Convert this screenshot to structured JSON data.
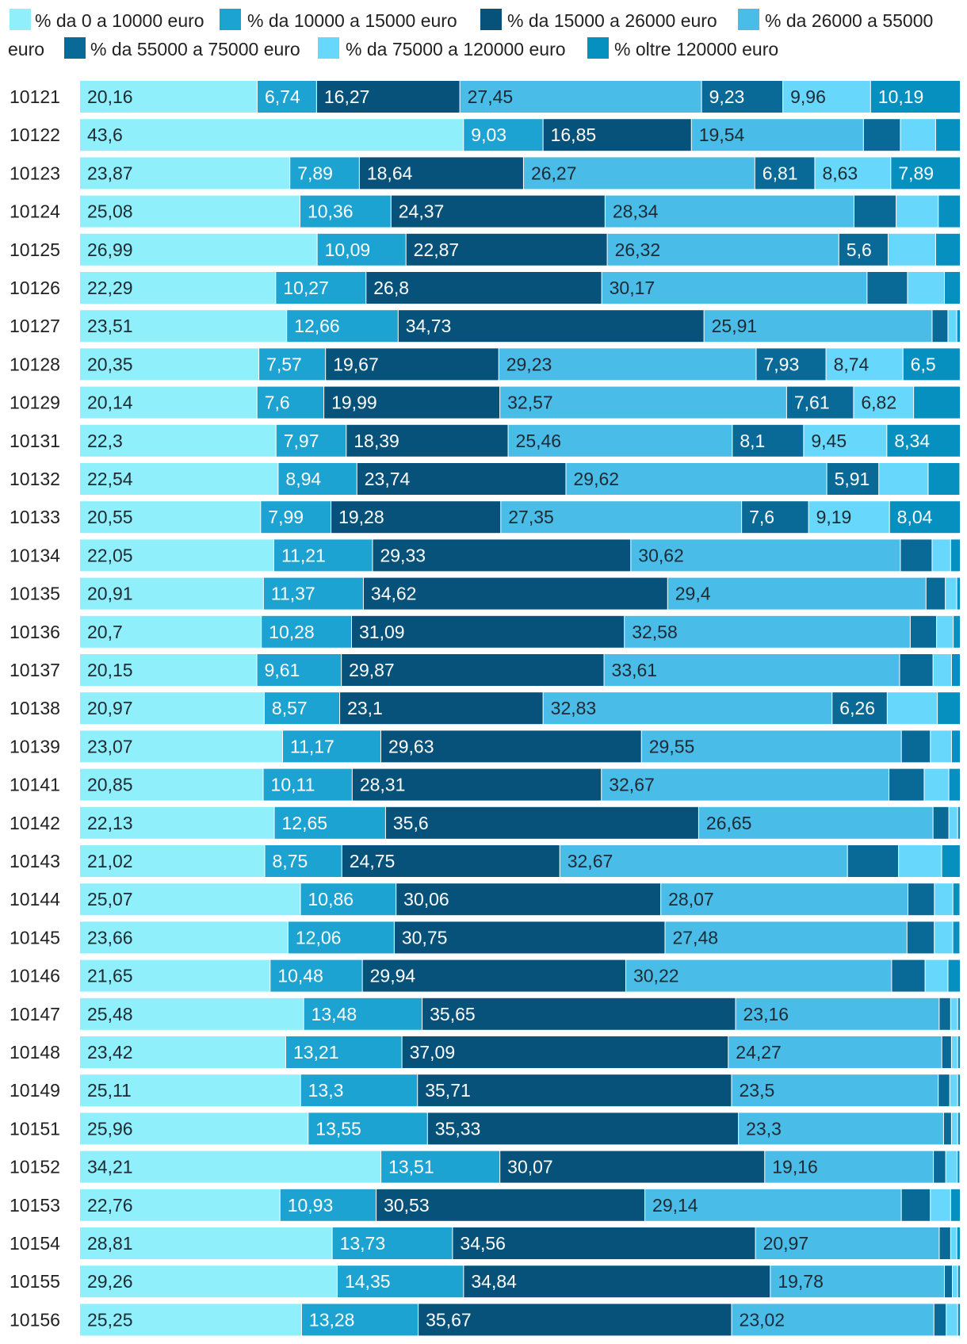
{
  "chart_data": {
    "type": "bar",
    "orientation": "horizontal",
    "stacked": true,
    "title": "",
    "xlabel": "",
    "ylabel": "",
    "legend_position": "top",
    "categories": [
      "10121",
      "10122",
      "10123",
      "10124",
      "10125",
      "10126",
      "10127",
      "10128",
      "10129",
      "10131",
      "10132",
      "10133",
      "10134",
      "10135",
      "10136",
      "10137",
      "10138",
      "10139",
      "10141",
      "10142",
      "10143",
      "10144",
      "10145",
      "10146",
      "10147",
      "10148",
      "10149",
      "10151",
      "10152",
      "10153",
      "10154",
      "10155",
      "10156"
    ],
    "series": [
      {
        "name": "% da 0 a 10000 euro",
        "color": "#8ff0fb",
        "values": [
          20.16,
          43.6,
          23.87,
          25.08,
          26.99,
          22.29,
          23.51,
          20.35,
          20.14,
          22.3,
          22.54,
          20.55,
          22.05,
          20.91,
          20.7,
          20.15,
          20.97,
          23.07,
          20.85,
          22.13,
          21.02,
          25.07,
          23.66,
          21.65,
          25.48,
          23.42,
          25.11,
          25.96,
          34.21,
          22.76,
          28.81,
          29.26,
          25.25
        ],
        "labels": [
          "20,16",
          "43,6",
          "23,87",
          "25,08",
          "26,99",
          "22,29",
          "23,51",
          "20,35",
          "20,14",
          "22,3",
          "22,54",
          "20,55",
          "22,05",
          "20,91",
          "20,7",
          "20,15",
          "20,97",
          "23,07",
          "20,85",
          "22,13",
          "21,02",
          "25,07",
          "23,66",
          "21,65",
          "25,48",
          "23,42",
          "25,11",
          "25,96",
          "34,21",
          "22,76",
          "28,81",
          "29,26",
          "25,25"
        ]
      },
      {
        "name": "% da 10000 a 15000 euro",
        "color": "#1da3d1",
        "values": [
          6.74,
          9.03,
          7.89,
          10.36,
          10.09,
          10.27,
          12.66,
          7.57,
          7.6,
          7.97,
          8.94,
          7.99,
          11.21,
          11.37,
          10.28,
          9.61,
          8.57,
          11.17,
          10.11,
          12.65,
          8.75,
          10.86,
          12.06,
          10.48,
          13.48,
          13.21,
          13.3,
          13.55,
          13.51,
          10.93,
          13.73,
          14.35,
          13.28
        ],
        "labels": [
          "6,74",
          "9,03",
          "7,89",
          "10,36",
          "10,09",
          "10,27",
          "12,66",
          "7,57",
          "7,6",
          "7,97",
          "8,94",
          "7,99",
          "11,21",
          "11,37",
          "10,28",
          "9,61",
          "8,57",
          "11,17",
          "10,11",
          "12,65",
          "8,75",
          "10,86",
          "12,06",
          "10,48",
          "13,48",
          "13,21",
          "13,3",
          "13,55",
          "13,51",
          "10,93",
          "13,73",
          "14,35",
          "13,28"
        ]
      },
      {
        "name": "% da 15000 a 26000 euro",
        "color": "#07527a",
        "values": [
          16.27,
          16.85,
          18.64,
          24.37,
          22.87,
          26.8,
          34.73,
          19.67,
          19.99,
          18.39,
          23.74,
          19.28,
          29.33,
          34.62,
          31.09,
          29.87,
          23.1,
          29.63,
          28.31,
          35.6,
          24.75,
          30.06,
          30.75,
          29.94,
          35.65,
          37.09,
          35.71,
          35.33,
          30.07,
          30.53,
          34.56,
          34.84,
          35.67
        ],
        "labels": [
          "16,27",
          "16,85",
          "18,64",
          "24,37",
          "22,87",
          "26,8",
          "34,73",
          "19,67",
          "19,99",
          "18,39",
          "23,74",
          "19,28",
          "29,33",
          "34,62",
          "31,09",
          "29,87",
          "23,1",
          "29,63",
          "28,31",
          "35,6",
          "24,75",
          "30,06",
          "30,75",
          "29,94",
          "35,65",
          "37,09",
          "35,71",
          "35,33",
          "30,07",
          "30,53",
          "34,56",
          "34,84",
          "35,67"
        ]
      },
      {
        "name": "% da 26000 a 55000 euro",
        "color": "#49bce8",
        "values": [
          27.45,
          19.54,
          26.27,
          28.34,
          26.32,
          30.17,
          25.91,
          29.23,
          32.57,
          25.46,
          29.62,
          27.35,
          30.62,
          29.4,
          32.58,
          33.61,
          32.83,
          29.55,
          32.67,
          26.65,
          32.67,
          28.07,
          27.48,
          30.22,
          23.16,
          24.27,
          23.5,
          23.3,
          19.16,
          29.14,
          20.97,
          19.78,
          23.02
        ],
        "labels": [
          "27,45",
          "19,54",
          "26,27",
          "28,34",
          "26,32",
          "30,17",
          "25,91",
          "29,23",
          "32,57",
          "25,46",
          "29,62",
          "27,35",
          "30,62",
          "29,4",
          "32,58",
          "33,61",
          "32,83",
          "29,55",
          "32,67",
          "26,65",
          "32,67",
          "28,07",
          "27,48",
          "30,22",
          "23,16",
          "24,27",
          "23,5",
          "23,3",
          "19,16",
          "29,14",
          "20,97",
          "19,78",
          "23,02"
        ]
      },
      {
        "name": "% da 55000 a 75000 euro",
        "color": "#0a6a97",
        "values": [
          9.23,
          4.2,
          6.81,
          4.8,
          5.6,
          4.6,
          1.8,
          7.93,
          7.61,
          8.1,
          5.91,
          7.6,
          3.6,
          2.2,
          3.0,
          3.8,
          6.26,
          3.3,
          4.0,
          1.8,
          5.8,
          3.0,
          3.1,
          3.8,
          1.3,
          1.1,
          1.3,
          0.9,
          1.4,
          3.3,
          1.3,
          0.9,
          1.4
        ],
        "labels": [
          "9,23",
          "",
          "6,81",
          "",
          "5,6",
          "",
          "",
          "7,93",
          "7,61",
          "8,1",
          "5,91",
          "7,6",
          "",
          "",
          "",
          "",
          "6,26",
          "",
          "",
          "",
          "",
          "",
          "",
          "",
          "",
          "",
          "",
          "",
          "",
          "",
          "",
          "",
          ""
        ]
      },
      {
        "name": "% da 75000 a 120000 euro",
        "color": "#67d8fb",
        "values": [
          9.96,
          4.0,
          8.63,
          4.8,
          5.4,
          4.2,
          1.0,
          8.74,
          6.82,
          9.45,
          5.6,
          9.19,
          2.1,
          1.3,
          1.9,
          2.1,
          5.7,
          2.4,
          2.8,
          1.0,
          4.9,
          2.1,
          2.1,
          2.6,
          0.8,
          0.7,
          0.9,
          0.7,
          1.3,
          2.3,
          0.7,
          0.6,
          1.3
        ],
        "labels": [
          "9,96",
          "",
          "8,63",
          "",
          "",
          "",
          "",
          "8,74",
          "6,82",
          "9,45",
          "",
          "9,19",
          "",
          "",
          "",
          "",
          "",
          "",
          "",
          "",
          "",
          "",
          "",
          "",
          "",
          "",
          "",
          "",
          "",
          "",
          "",
          "",
          ""
        ]
      },
      {
        "name": "% oltre 120000 euro",
        "color": "#0590bf",
        "values": [
          10.19,
          2.8,
          7.89,
          2.5,
          2.8,
          1.8,
          0.4,
          6.5,
          5.3,
          8.34,
          3.6,
          8.04,
          1.1,
          0.4,
          0.8,
          1.0,
          2.6,
          1.0,
          1.3,
          0.3,
          2.1,
          0.8,
          0.8,
          1.4,
          0.3,
          0.3,
          0.3,
          0.3,
          0.3,
          1.1,
          0.4,
          0.3,
          0.3
        ],
        "labels": [
          "10,19",
          "",
          "7,89",
          "",
          "",
          "",
          "",
          "6,5",
          "",
          "8,34",
          "",
          "8,04",
          "",
          "",
          "",
          "",
          "",
          "",
          "",
          "",
          "",
          "",
          "",
          "",
          "",
          "",
          "",
          "",
          "",
          "",
          "",
          "",
          ""
        ]
      }
    ],
    "xlim": [
      0,
      100
    ]
  }
}
